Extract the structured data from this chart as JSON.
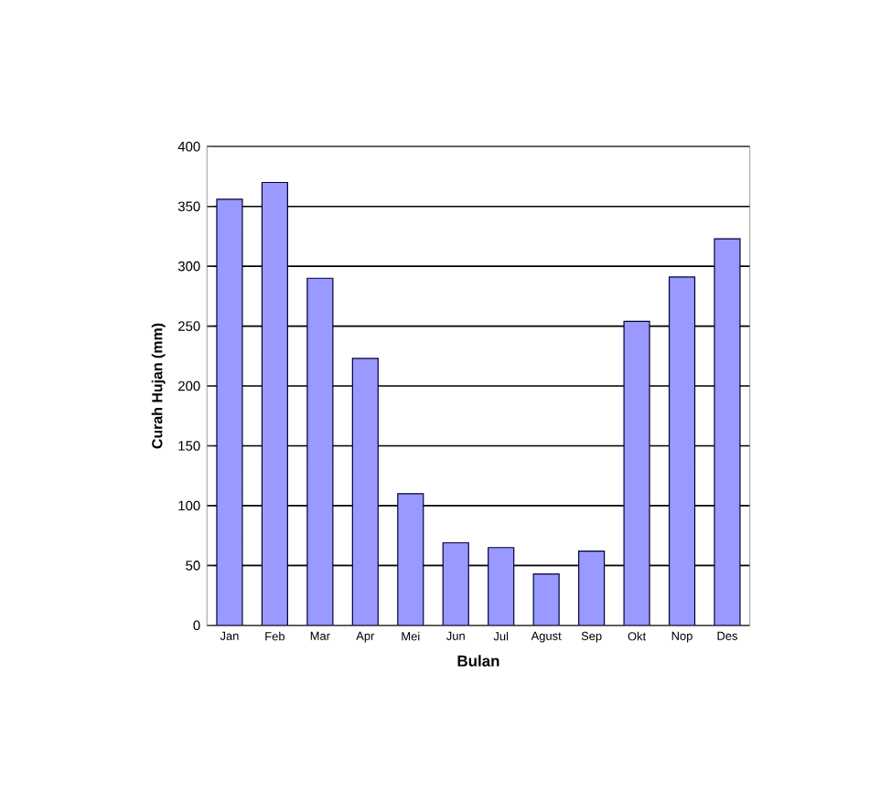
{
  "chart_data": {
    "type": "bar",
    "xlabel": "Bulan",
    "ylabel": "Curah Hujan (mm)",
    "categories": [
      "Jan",
      "Feb",
      "Mar",
      "Apr",
      "Mei",
      "Jun",
      "Jul",
      "Agust",
      "Sep",
      "Okt",
      "Nop",
      "Des"
    ],
    "values": [
      356,
      370,
      290,
      223,
      110,
      69,
      65,
      43,
      62,
      254,
      291,
      323
    ],
    "color": "#9999ff",
    "ylim": [
      0,
      400
    ],
    "yticks": [
      0,
      50,
      100,
      150,
      200,
      250,
      300,
      350,
      400
    ],
    "grid": "y"
  }
}
